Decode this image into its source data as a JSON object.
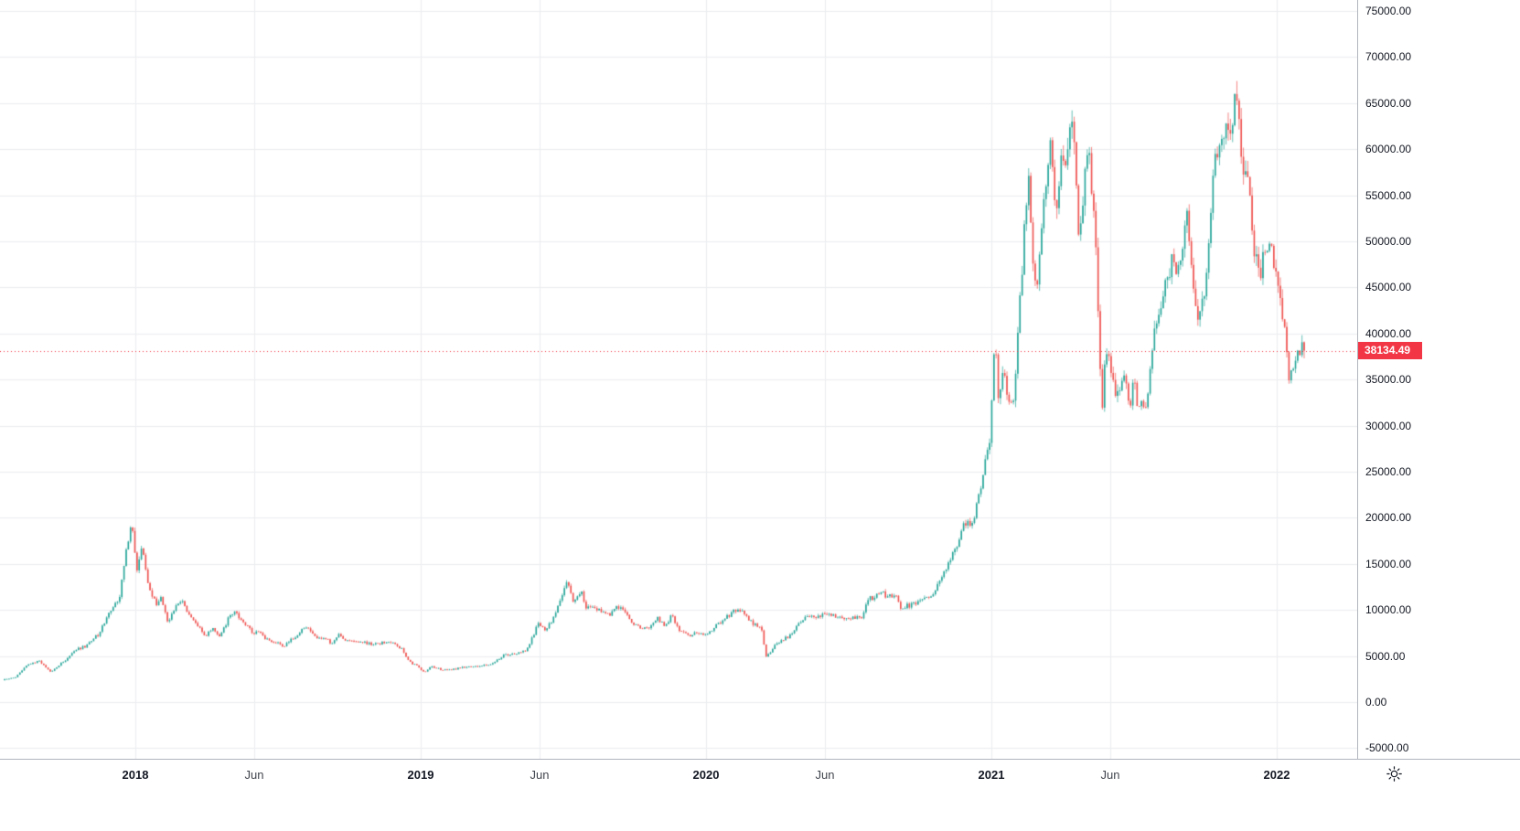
{
  "colors": {
    "background": "#ffffff",
    "up": "#26a69a",
    "down": "#ef5350",
    "grid": "#ebedf0",
    "axis_border": "#b2b5be",
    "axis_text": "#131722",
    "last_price_bg": "#f23645",
    "last_price_text": "#ffffff",
    "dotted_line": "#f23645",
    "icon": "#131722"
  },
  "chart_data": {
    "type": "candlestick",
    "title": "",
    "xlabel": "",
    "ylabel": "",
    "ylim": [
      -5000,
      75000
    ],
    "y_tick_step": 5000,
    "grid": true,
    "legend": "none",
    "last_price": 38134.49,
    "last_price_label": "38134.49",
    "price_ticks": [
      "75000.00",
      "70000.00",
      "65000.00",
      "60000.00",
      "55000.00",
      "50000.00",
      "45000.00",
      "40000.00",
      "35000.00",
      "30000.00",
      "25000.00",
      "20000.00",
      "15000.00",
      "10000.00",
      "5000.00",
      "0.00",
      "-5000.00"
    ],
    "time_ticks": [
      {
        "label": "2018",
        "m": 12,
        "kind": "year"
      },
      {
        "label": "Jun",
        "m": 17,
        "kind": "month"
      },
      {
        "label": "2019",
        "m": 24,
        "kind": "year"
      },
      {
        "label": "Jun",
        "m": 29,
        "kind": "month"
      },
      {
        "label": "2020",
        "m": 36,
        "kind": "year"
      },
      {
        "label": "Jun",
        "m": 41,
        "kind": "month"
      },
      {
        "label": "2021",
        "m": 48,
        "kind": "year"
      },
      {
        "label": "Jun",
        "m": 53,
        "kind": "month"
      },
      {
        "label": "2022",
        "m": 60,
        "kind": "year"
      }
    ],
    "series_anchors_months_price": [
      [
        6.46,
        2400
      ],
      [
        7,
        2700
      ],
      [
        7.5,
        4100
      ],
      [
        8,
        4400
      ],
      [
        8.5,
        3250
      ],
      [
        9,
        4350
      ],
      [
        9.5,
        5600
      ],
      [
        10,
        6150
      ],
      [
        10.5,
        7400
      ],
      [
        11,
        9900
      ],
      [
        11.4,
        11500
      ],
      [
        11.7,
        17200
      ],
      [
        11.9,
        19600
      ],
      [
        12.1,
        14300
      ],
      [
        12.3,
        16900
      ],
      [
        12.6,
        12800
      ],
      [
        12.9,
        10600
      ],
      [
        13.1,
        11500
      ],
      [
        13.4,
        8600
      ],
      [
        13.7,
        10300
      ],
      [
        14,
        11000
      ],
      [
        14.3,
        9600
      ],
      [
        14.6,
        8600
      ],
      [
        15,
        7000
      ],
      [
        15.3,
        8200
      ],
      [
        15.6,
        7100
      ],
      [
        16,
        9300
      ],
      [
        16.3,
        9750
      ],
      [
        16.6,
        8500
      ],
      [
        17,
        7550
      ],
      [
        17.3,
        7650
      ],
      [
        17.6,
        6700
      ],
      [
        18,
        6400
      ],
      [
        18.3,
        6150
      ],
      [
        18.6,
        6750
      ],
      [
        19,
        7700
      ],
      [
        19.3,
        8250
      ],
      [
        19.6,
        7000
      ],
      [
        20,
        7050
      ],
      [
        20.3,
        6300
      ],
      [
        20.6,
        7250
      ],
      [
        21,
        6600
      ],
      [
        21.3,
        6450
      ],
      [
        21.6,
        6500
      ],
      [
        22,
        6300
      ],
      [
        22.5,
        6450
      ],
      [
        23,
        6350
      ],
      [
        23.3,
        5600
      ],
      [
        23.6,
        4300
      ],
      [
        23.9,
        3900
      ],
      [
        24.2,
        3300
      ],
      [
        24.5,
        3900
      ],
      [
        25,
        3450
      ],
      [
        25.5,
        3600
      ],
      [
        26,
        3850
      ],
      [
        26.5,
        3900
      ],
      [
        27,
        4100
      ],
      [
        27.5,
        5050
      ],
      [
        28,
        5300
      ],
      [
        28.5,
        5700
      ],
      [
        29,
        8550
      ],
      [
        29.3,
        7900
      ],
      [
        29.6,
        9000
      ],
      [
        30,
        11900
      ],
      [
        30.2,
        12900
      ],
      [
        30.5,
        10800
      ],
      [
        30.8,
        12250
      ],
      [
        31,
        10100
      ],
      [
        31.3,
        10500
      ],
      [
        31.6,
        9900
      ],
      [
        32,
        9600
      ],
      [
        32.3,
        10350
      ],
      [
        32.6,
        10100
      ],
      [
        33,
        8300
      ],
      [
        33.3,
        8150
      ],
      [
        33.6,
        8050
      ],
      [
        34,
        9150
      ],
      [
        34.3,
        8250
      ],
      [
        34.6,
        9350
      ],
      [
        35,
        7550
      ],
      [
        35.3,
        7250
      ],
      [
        35.6,
        7450
      ],
      [
        36,
        7200
      ],
      [
        36.5,
        8400
      ],
      [
        37,
        9350
      ],
      [
        37.4,
        10300
      ],
      [
        38,
        8550
      ],
      [
        38.4,
        7900
      ],
      [
        38.55,
        4850
      ],
      [
        38.8,
        5400
      ],
      [
        39,
        6400
      ],
      [
        39.5,
        7100
      ],
      [
        40,
        8600
      ],
      [
        40.3,
        9550
      ],
      [
        40.6,
        9300
      ],
      [
        41,
        9450
      ],
      [
        41.5,
        9350
      ],
      [
        42,
        9140
      ],
      [
        42.6,
        9250
      ],
      [
        42.8,
        11000
      ],
      [
        43,
        11300
      ],
      [
        43.4,
        11900
      ],
      [
        43.7,
        11400
      ],
      [
        44,
        11700
      ],
      [
        44.2,
        10200
      ],
      [
        44.6,
        10500
      ],
      [
        45,
        10800
      ],
      [
        45.5,
        11500
      ],
      [
        46,
        13800
      ],
      [
        46.5,
        16300
      ],
      [
        46.9,
        19600
      ],
      [
        47.2,
        18900
      ],
      [
        47.6,
        23300
      ],
      [
        48,
        29000
      ],
      [
        48.2,
        40000
      ],
      [
        48.35,
        31500
      ],
      [
        48.55,
        36000
      ],
      [
        48.75,
        32100
      ],
      [
        49,
        33100
      ],
      [
        49.35,
        48000
      ],
      [
        49.6,
        57400
      ],
      [
        49.8,
        46300
      ],
      [
        50,
        45200
      ],
      [
        50.3,
        54900
      ],
      [
        50.55,
        61200
      ],
      [
        50.75,
        52300
      ],
      [
        51,
        58800
      ],
      [
        51.2,
        59100
      ],
      [
        51.45,
        64300
      ],
      [
        51.75,
        49000
      ],
      [
        52,
        57700
      ],
      [
        52.2,
        58900
      ],
      [
        52.45,
        49000
      ],
      [
        52.6,
        38900
      ],
      [
        52.68,
        31000
      ],
      [
        52.85,
        37500
      ],
      [
        53,
        37300
      ],
      [
        53.3,
        33100
      ],
      [
        53.6,
        35800
      ],
      [
        53.85,
        31600
      ],
      [
        54,
        35000
      ],
      [
        54.25,
        31800
      ],
      [
        54.55,
        32200
      ],
      [
        54.8,
        38200
      ],
      [
        55,
        41500
      ],
      [
        55.35,
        45600
      ],
      [
        55.65,
        47800
      ],
      [
        56,
        47100
      ],
      [
        56.25,
        52700
      ],
      [
        56.5,
        46000
      ],
      [
        56.75,
        41000
      ],
      [
        57,
        43800
      ],
      [
        57.3,
        54700
      ],
      [
        57.6,
        61400
      ],
      [
        57.85,
        62000
      ],
      [
        58.1,
        61300
      ],
      [
        58.35,
        67600
      ],
      [
        58.65,
        56500
      ],
      [
        58.9,
        57200
      ],
      [
        59.05,
        49300
      ],
      [
        59.4,
        46800
      ],
      [
        59.7,
        50800
      ],
      [
        60,
        46200
      ],
      [
        60.35,
        41800
      ],
      [
        60.55,
        35200
      ],
      [
        60.75,
        36800
      ],
      [
        61,
        38500
      ],
      [
        61.2,
        38134.49
      ]
    ]
  }
}
